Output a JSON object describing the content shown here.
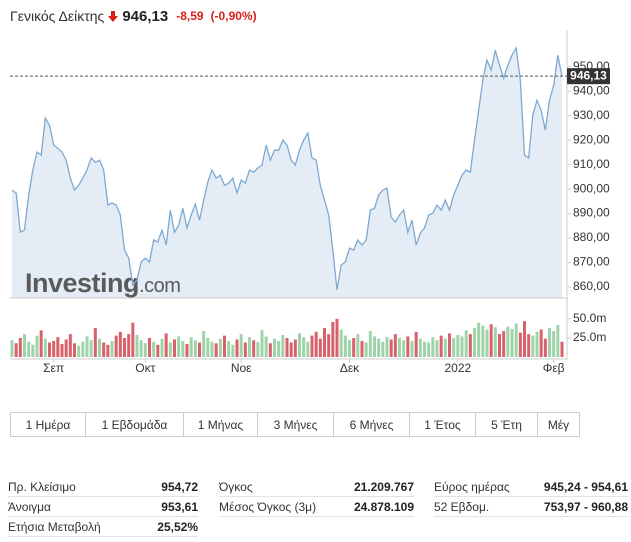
{
  "header": {
    "title": "Γενικός Δείκτης",
    "price": "946,13",
    "change": "-8,59",
    "change_pct": "(-0,90%)"
  },
  "chart_data": [
    {
      "type": "line",
      "color": "#7fa9d0",
      "fill": "#e4edf6",
      "xlim": [
        0,
        132
      ],
      "xticks": [
        {
          "value": 10,
          "label": "Σεπ"
        },
        {
          "value": 32,
          "label": "Οκτ"
        },
        {
          "value": 55,
          "label": "Νοε"
        },
        {
          "value": 81,
          "label": "Δεκ"
        },
        {
          "value": 107,
          "label": "2022"
        },
        {
          "value": 130,
          "label": "Φεβ"
        }
      ],
      "ylim": [
        855.5,
        965
      ],
      "yticks": [
        {
          "value": 950,
          "label": "950,00"
        },
        {
          "value": 940,
          "label": "940,00"
        },
        {
          "value": 930,
          "label": "930,00"
        },
        {
          "value": 920,
          "label": "920,00"
        },
        {
          "value": 910,
          "label": "910,00"
        },
        {
          "value": 900,
          "label": "900,00"
        },
        {
          "value": 890,
          "label": "890,00"
        },
        {
          "value": 880,
          "label": "880,00"
        },
        {
          "value": 870,
          "label": "870,00"
        },
        {
          "value": 860,
          "label": "860,00"
        }
      ],
      "last_label": "946,13",
      "values": [
        899.6,
        898.4,
        882.4,
        883.3,
        897.6,
        907.8,
        915.1,
        913.9,
        929.0,
        926.1,
        918.0,
        916.7,
        915.1,
        911.8,
        904.5,
        899.6,
        901.6,
        904.5,
        907.8,
        912.7,
        911.0,
        911.8,
        907.8,
        893.5,
        894.3,
        893.5,
        889.4,
        875.1,
        871.8,
        860.8,
        862.9,
        870.2,
        871.8,
        870.2,
        879.2,
        878.4,
        883.3,
        877.1,
        891.4,
        882.4,
        885.3,
        892.2,
        884.1,
        889.4,
        893.9,
        887.3,
        895.5,
        902.9,
        907.8,
        904.5,
        905.7,
        901.6,
        902.4,
        904.5,
        898.4,
        903.7,
        902.4,
        907.8,
        906.9,
        908.6,
        909.8,
        918.0,
        911.8,
        915.9,
        915.9,
        920.0,
        918.0,
        911.8,
        909.8,
        915.9,
        920.0,
        922.9,
        912.7,
        911.8,
        901.6,
        895.5,
        889.4,
        875.1,
        858.8,
        869.0,
        870.2,
        875.9,
        875.1,
        879.2,
        877.1,
        879.2,
        891.4,
        892.2,
        897.6,
        899.6,
        900.4,
        888.6,
        886.5,
        889.4,
        891.4,
        882.4,
        887.3,
        877.1,
        882.0,
        884.1,
        889.4,
        890.2,
        893.5,
        891.4,
        895.5,
        891.4,
        897.6,
        901.6,
        905.7,
        907.8,
        906.9,
        920.0,
        932.2,
        944.5,
        952.7,
        948.6,
        956.7,
        950.6,
        945.3,
        950.6,
        954.7,
        957.6,
        944.5,
        913.9,
        912.7,
        930.2,
        936.3,
        932.2,
        924.1,
        936.3,
        942.4,
        954.7,
        946.13
      ]
    },
    {
      "type": "bar",
      "up_color": "#9fd4aa",
      "down_color": "#d9626a",
      "xlim": [
        0,
        132
      ],
      "ylim": [
        0,
        59
      ],
      "yticks": [
        {
          "value": 50,
          "label": "50.0m"
        },
        {
          "value": 25,
          "label": "25.0m"
        }
      ],
      "values": [
        22,
        18,
        25,
        30,
        20,
        16,
        28,
        35,
        24,
        19,
        21,
        26,
        17,
        23,
        30,
        18,
        15,
        20,
        27,
        22,
        38,
        24,
        19,
        16,
        21,
        28,
        33,
        25,
        30,
        45,
        29,
        22,
        18,
        25,
        20,
        16,
        24,
        31,
        19,
        23,
        27,
        21,
        17,
        26,
        22,
        19,
        34,
        25,
        20,
        18,
        24,
        28,
        21,
        16,
        23,
        30,
        19,
        26,
        22,
        20,
        35,
        27,
        18,
        24,
        21,
        29,
        25,
        19,
        23,
        31,
        26,
        20,
        28,
        33,
        24,
        38,
        30,
        46,
        50,
        36,
        28,
        22,
        25,
        30,
        21,
        19,
        34,
        27,
        24,
        20,
        26,
        23,
        30,
        25,
        22,
        27,
        21,
        33,
        24,
        20,
        19,
        26,
        22,
        28,
        24,
        31,
        25,
        29,
        27,
        35,
        30,
        38,
        45,
        41,
        36,
        43,
        39,
        30,
        34,
        40,
        37,
        44,
        32,
        47,
        30,
        28,
        33,
        36,
        24,
        38,
        34,
        42,
        20
      ]
    }
  ],
  "watermark": {
    "brand": "Investing",
    "suffix": ".com"
  },
  "tabs": [
    "1 Ημέρα",
    "1 Εβδομάδα",
    "1 Μήνας",
    "3 Μήνες",
    "6 Μήνες",
    "1 Έτος",
    "5 Έτη",
    "Μέγ"
  ],
  "stats": [
    [
      {
        "label": "Πρ. Κλείσιμο",
        "value": "954,72"
      },
      {
        "label": "Άνοιγμα",
        "value": "953,61"
      },
      {
        "label": "Ετήσια Μεταβολή",
        "value": "25,52%"
      }
    ],
    [
      {
        "label": "Όγκος",
        "value": "21.209.767"
      },
      {
        "label": "Μέσος Όγκος (3μ)",
        "value": "24.878.109"
      }
    ],
    [
      {
        "label": "Εύρος ημέρας",
        "value": "945,24 - 954,61"
      },
      {
        "label": "52 Εβδομ.",
        "value": "753,97 - 960,88"
      }
    ]
  ]
}
